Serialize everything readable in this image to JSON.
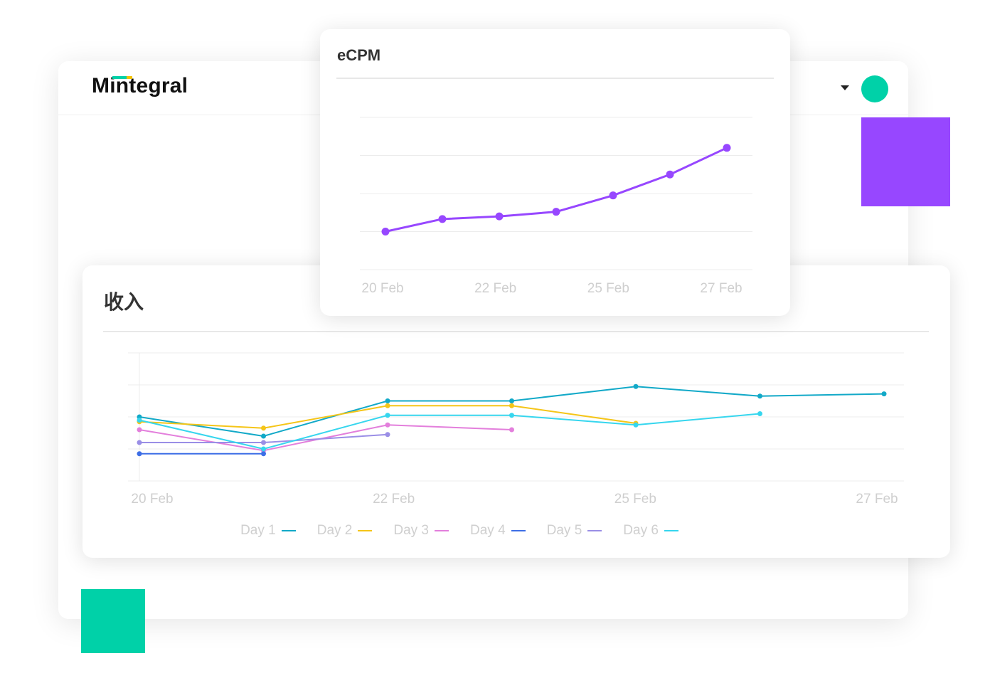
{
  "brand": {
    "logo_text": "Mintegral",
    "colors": {
      "brand_green": "#00d1a8",
      "brand_purple": "#9747ff",
      "brand_yellow": "#f3c300"
    }
  },
  "header": {
    "dropdown_icon": "caret-down-icon",
    "avatar_color": "#00d1a8"
  },
  "chart_data": [
    {
      "type": "line",
      "title": "eCPM",
      "x_ticks": [
        "20 Feb",
        "22 Feb",
        "25 Feb",
        "27 Feb"
      ],
      "series": [
        {
          "color": "#9747ff",
          "values": [
            1.0,
            1.33,
            1.4,
            1.52,
            1.95,
            2.5,
            3.2
          ]
        }
      ],
      "ylim": [
        0,
        4
      ],
      "grid": true,
      "legend": "none"
    },
    {
      "type": "line",
      "title": "收入",
      "x_ticks": [
        "20 Feb",
        "22 Feb",
        "25 Feb",
        "27 Feb"
      ],
      "series": [
        {
          "name": "Day 1",
          "color": "#12a9c8",
          "values": [
            2.0,
            1.4,
            2.5,
            2.5,
            2.95,
            2.65,
            2.72
          ]
        },
        {
          "name": "Day 2",
          "color": "#f5c518",
          "values": [
            1.85,
            1.65,
            2.35,
            2.35,
            1.8,
            null,
            null
          ]
        },
        {
          "name": "Day 3",
          "color": "#e37fdc",
          "values": [
            1.6,
            0.95,
            1.75,
            1.6,
            null,
            null,
            null
          ]
        },
        {
          "name": "Day 4",
          "color": "#3d6ee6",
          "values": [
            0.85,
            0.85,
            null,
            null,
            null,
            null,
            null
          ]
        },
        {
          "name": "Day 5",
          "color": "#9a8ee6",
          "values": [
            1.2,
            1.2,
            1.45,
            null,
            null,
            null,
            null
          ]
        },
        {
          "name": "Day 6",
          "color": "#36d6ee",
          "values": [
            1.9,
            1.0,
            2.05,
            2.05,
            1.75,
            2.1,
            null
          ]
        }
      ],
      "ylim": [
        0,
        4
      ],
      "grid": true,
      "legend": "bottom-center"
    }
  ]
}
